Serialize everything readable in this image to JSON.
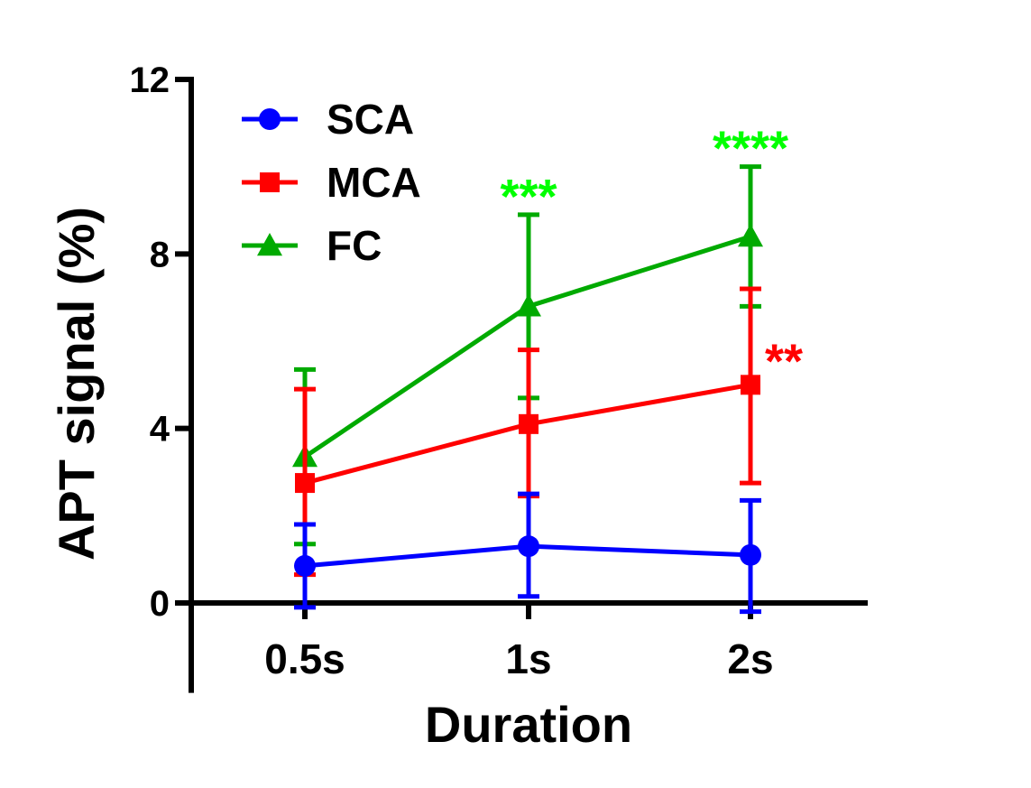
{
  "chart_data": {
    "type": "line",
    "title": "",
    "xlabel": "Duration",
    "ylabel": "APT signal (%)",
    "categories": [
      "0.5s",
      "1s",
      "2s"
    ],
    "ylim": [
      -2,
      12
    ],
    "yticks": [
      0,
      4,
      8,
      12
    ],
    "ytick_labels": [
      "0",
      "4",
      "8",
      "12"
    ],
    "grid": false,
    "legend_position": "top-left",
    "series": [
      {
        "name": "SCA",
        "color": "#0000ff",
        "marker": "circle",
        "values": [
          0.85,
          1.3,
          1.1
        ],
        "err_upper": [
          1.8,
          2.5,
          2.35
        ],
        "err_lower": [
          -0.1,
          0.15,
          -0.2
        ]
      },
      {
        "name": "MCA",
        "color": "#ff0000",
        "marker": "square",
        "values": [
          2.75,
          4.1,
          5.0
        ],
        "err_upper": [
          4.9,
          5.8,
          7.2
        ],
        "err_lower": [
          0.65,
          2.45,
          2.75
        ]
      },
      {
        "name": "FC",
        "color": "#00aa00",
        "marker": "triangle",
        "values": [
          3.35,
          6.8,
          8.4
        ],
        "err_upper": [
          5.35,
          8.9,
          10.0
        ],
        "err_lower": [
          1.35,
          4.7,
          6.8
        ]
      }
    ],
    "annotations": [
      {
        "text": "***",
        "color": "#00ff00",
        "category": "1s",
        "near_series": "FC",
        "placement": "above"
      },
      {
        "text": "****",
        "color": "#00ff00",
        "category": "2s",
        "near_series": "FC",
        "placement": "above"
      },
      {
        "text": "**",
        "color": "#ff0000",
        "category": "2s",
        "near_series": "MCA",
        "placement": "right"
      }
    ]
  }
}
